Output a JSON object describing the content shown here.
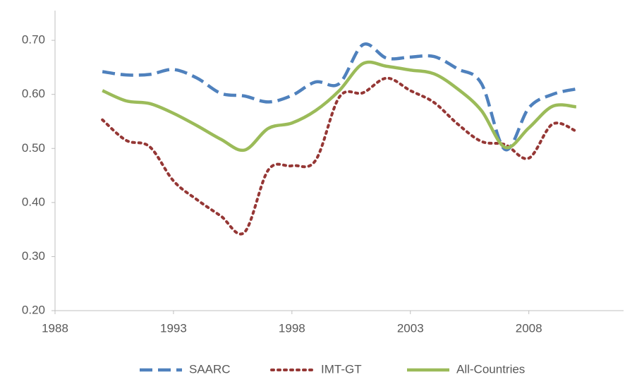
{
  "chart_data": {
    "type": "line",
    "x": [
      1990,
      1991,
      1992,
      1993,
      1994,
      1995,
      1996,
      1997,
      1998,
      1999,
      2000,
      2001,
      2002,
      2003,
      2004,
      2005,
      2006,
      2007,
      2008,
      2009,
      2010
    ],
    "series": [
      {
        "name": "SAARC",
        "color": "#4f81bd",
        "style": "dashed",
        "values": [
          0.642,
          0.636,
          0.637,
          0.646,
          0.63,
          0.602,
          0.597,
          0.586,
          0.598,
          0.623,
          0.62,
          0.692,
          0.667,
          0.669,
          0.67,
          0.647,
          0.62,
          0.498,
          0.575,
          0.6,
          0.61
        ]
      },
      {
        "name": "IMT-GT",
        "color": "#953735",
        "style": "dotted",
        "values": [
          0.553,
          0.515,
          0.503,
          0.44,
          0.405,
          0.375,
          0.345,
          0.46,
          0.468,
          0.478,
          0.595,
          0.603,
          0.63,
          0.607,
          0.585,
          0.545,
          0.513,
          0.507,
          0.482,
          0.545,
          0.532
        ]
      },
      {
        "name": "All-Countries",
        "color": "#9bbb59",
        "style": "solid",
        "values": [
          0.607,
          0.588,
          0.583,
          0.565,
          0.542,
          0.517,
          0.497,
          0.537,
          0.547,
          0.57,
          0.607,
          0.657,
          0.652,
          0.645,
          0.638,
          0.61,
          0.57,
          0.502,
          0.538,
          0.578,
          0.577
        ]
      }
    ],
    "xlim": [
      1988,
      2012
    ],
    "xticks": [
      1988,
      1993,
      1998,
      2003,
      2008
    ],
    "ylim": [
      0.2,
      0.755
    ],
    "yticks": [
      {
        "value": 0.2,
        "label": "0.20"
      },
      {
        "value": 0.3,
        "label": "0.30"
      },
      {
        "value": 0.4,
        "label": "0.40"
      },
      {
        "value": 0.5,
        "label": "0.50"
      },
      {
        "value": 0.6,
        "label": "0.60"
      },
      {
        "value": 0.7,
        "label": "0.70"
      }
    ],
    "grid": false,
    "legend": "bottom"
  }
}
